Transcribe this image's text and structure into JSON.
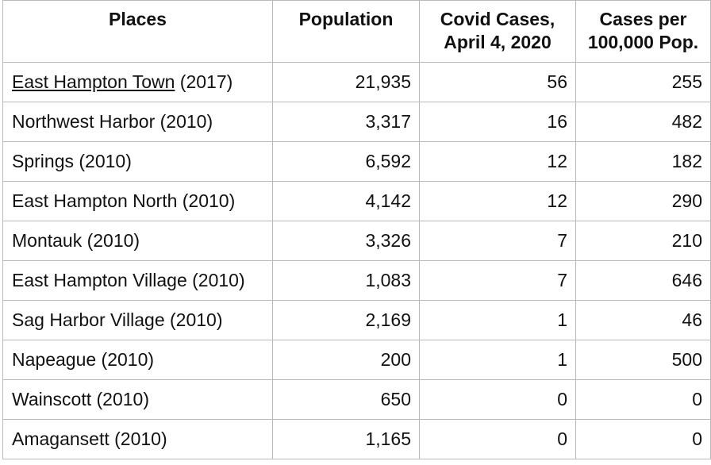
{
  "table": {
    "headers": {
      "places": [
        "Places"
      ],
      "population": [
        "Population"
      ],
      "covid_cases": [
        "Covid Cases,",
        "April 4, 2020"
      ],
      "cases_per": [
        "Cases per",
        "100,000 Pop."
      ]
    },
    "rows": [
      {
        "place_link": "East Hampton Town",
        "place_suffix": " (2017)",
        "population": "21,935",
        "cases": "56",
        "per100k": "255"
      },
      {
        "place_link": "",
        "place_suffix": "Northwest Harbor (2010)",
        "population": "3,317",
        "cases": "16",
        "per100k": "482"
      },
      {
        "place_link": "",
        "place_suffix": "Springs (2010)",
        "population": "6,592",
        "cases": "12",
        "per100k": "182"
      },
      {
        "place_link": "",
        "place_suffix": "East Hampton North (2010)",
        "population": "4,142",
        "cases": "12",
        "per100k": "290"
      },
      {
        "place_link": "",
        "place_suffix": "Montauk (2010)",
        "population": "3,326",
        "cases": "7",
        "per100k": "210"
      },
      {
        "place_link": "",
        "place_suffix": "East Hampton Village (2010)",
        "population": "1,083",
        "cases": "7",
        "per100k": "646"
      },
      {
        "place_link": "",
        "place_suffix": "Sag Harbor Village (2010)",
        "population": "2,169",
        "cases": "1",
        "per100k": "46"
      },
      {
        "place_link": "",
        "place_suffix": "Napeague (2010)",
        "population": "200",
        "cases": "1",
        "per100k": "500"
      },
      {
        "place_link": "",
        "place_suffix": "Wainscott (2010)",
        "population": "650",
        "cases": "0",
        "per100k": "0"
      },
      {
        "place_link": "",
        "place_suffix": "Amagansett (2010)",
        "population": "1,165",
        "cases": "0",
        "per100k": "0"
      }
    ]
  }
}
